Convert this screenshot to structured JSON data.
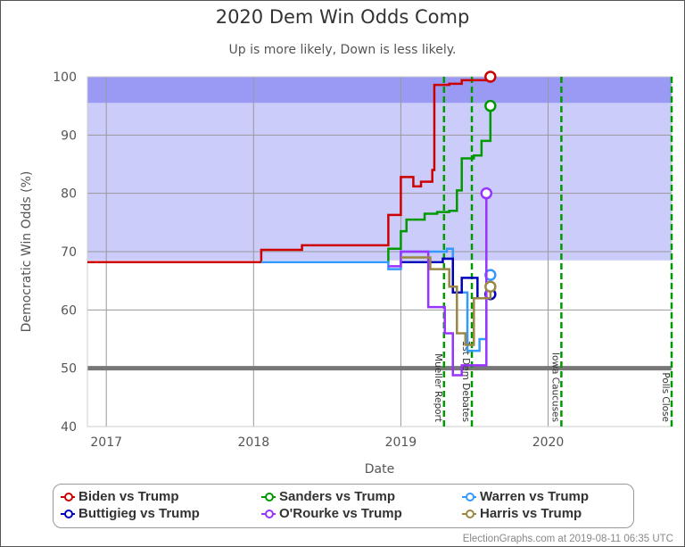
{
  "chart_data": {
    "type": "line",
    "title": "2020 Dem Win Odds Comp",
    "subtitle": "Up is more likely, Down is less likely.",
    "xlabel": "Date",
    "ylabel": "Democratic Win Odds (%)",
    "xlim": [
      "2016-11-15",
      "2020-11-03"
    ],
    "ylim": [
      40,
      100
    ],
    "yticks": [
      40,
      50,
      60,
      70,
      80,
      90,
      100
    ],
    "xticks": [
      "2017",
      "2018",
      "2019",
      "2020"
    ],
    "grid": true,
    "legend_placement": "bottom",
    "bands": [
      {
        "from": 95.5,
        "to": 100,
        "color": "#9a9af5"
      },
      {
        "from": 68.5,
        "to": 95.5,
        "color": "#ccccfa"
      }
    ],
    "reference_line": {
      "value": 50,
      "color": "#777777"
    },
    "events": [
      {
        "label": "Mueller Report",
        "date": "2019-04-18"
      },
      {
        "label": "1st Dem Debates",
        "date": "2019-06-26"
      },
      {
        "label": "Iowa Caucuses",
        "date": "2020-02-03"
      },
      {
        "label": "Polls Close",
        "date": "2020-11-03"
      }
    ],
    "series": [
      {
        "name": "Biden vs Trump",
        "color": "#cc0000",
        "points": [
          [
            "2016-11-15",
            68.2
          ],
          [
            "2018-01-20",
            70.3
          ],
          [
            "2018-05-01",
            71.1
          ],
          [
            "2018-12-01",
            76.3
          ],
          [
            "2019-01-01",
            82.8
          ],
          [
            "2019-02-01",
            81.2
          ],
          [
            "2019-02-20",
            82
          ],
          [
            "2019-03-20",
            84
          ],
          [
            "2019-03-25",
            98.6
          ],
          [
            "2019-05-01",
            98.8
          ],
          [
            "2019-06-01",
            99.4
          ],
          [
            "2019-08-11",
            100
          ]
        ]
      },
      {
        "name": "Sanders vs Trump",
        "color": "#009900",
        "points": [
          [
            "2018-01-20",
            68.2
          ],
          [
            "2018-12-01",
            70.5
          ],
          [
            "2019-01-01",
            73.5
          ],
          [
            "2019-01-15",
            75.5
          ],
          [
            "2019-03-01",
            76.5
          ],
          [
            "2019-04-01",
            76.8
          ],
          [
            "2019-05-01",
            77
          ],
          [
            "2019-05-20",
            80.5
          ],
          [
            "2019-06-01",
            86
          ],
          [
            "2019-07-01",
            86.5
          ],
          [
            "2019-07-20",
            89
          ],
          [
            "2019-08-11",
            95
          ]
        ]
      },
      {
        "name": "Warren vs Trump",
        "color": "#3399ff",
        "points": [
          [
            "2018-01-20",
            68.2
          ],
          [
            "2018-12-01",
            67
          ],
          [
            "2019-01-01",
            70
          ],
          [
            "2019-03-01",
            70
          ],
          [
            "2019-04-25",
            70.5
          ],
          [
            "2019-05-10",
            63
          ],
          [
            "2019-06-15",
            53
          ],
          [
            "2019-07-15",
            55
          ],
          [
            "2019-08-01",
            62
          ],
          [
            "2019-08-11",
            66
          ]
        ]
      },
      {
        "name": "Buttigieg vs Trump",
        "color": "#0000bb",
        "points": [
          [
            "2019-01-01",
            68.2
          ],
          [
            "2019-04-15",
            68.8
          ],
          [
            "2019-05-10",
            63
          ],
          [
            "2019-06-01",
            65.5
          ],
          [
            "2019-07-10",
            62
          ],
          [
            "2019-08-11",
            62.7
          ]
        ]
      },
      {
        "name": "O'Rourke vs Trump",
        "color": "#9933ff",
        "points": [
          [
            "2018-12-01",
            67.5
          ],
          [
            "2019-01-01",
            70
          ],
          [
            "2019-03-10",
            60.5
          ],
          [
            "2019-04-20",
            56
          ],
          [
            "2019-05-10",
            48.8
          ],
          [
            "2019-06-01",
            50.5
          ],
          [
            "2019-07-25",
            50.5
          ],
          [
            "2019-08-01",
            80
          ]
        ]
      },
      {
        "name": "Harris vs Trump",
        "color": "#998844",
        "points": [
          [
            "2019-01-01",
            69
          ],
          [
            "2019-03-15",
            67
          ],
          [
            "2019-05-01",
            64
          ],
          [
            "2019-05-20",
            56
          ],
          [
            "2019-06-10",
            54
          ],
          [
            "2019-07-01",
            62
          ],
          [
            "2019-08-11",
            64
          ]
        ]
      }
    ]
  },
  "credit": "ElectionGraphs.com at 2019-08-11 06:35 UTC"
}
